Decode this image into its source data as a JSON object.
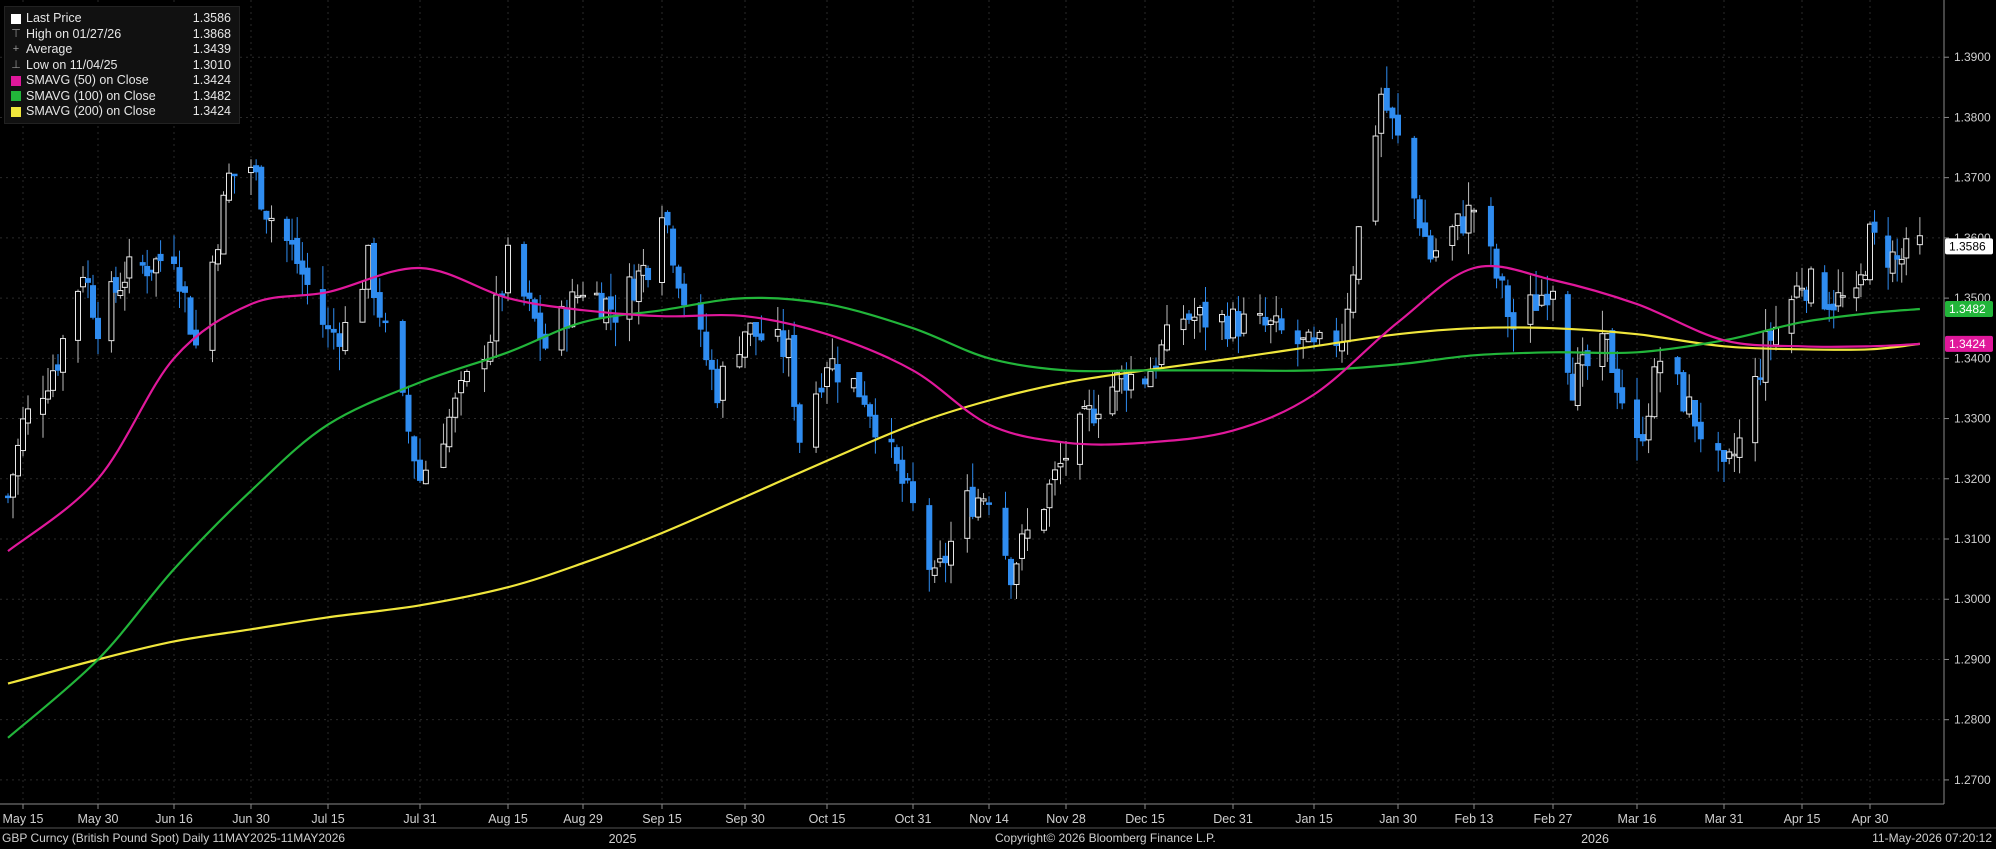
{
  "legend": {
    "last_price": {
      "label": "Last Price",
      "value": "1.3586"
    },
    "high": {
      "label": "High on 01/27/26",
      "value": "1.3868"
    },
    "average": {
      "label": "Average",
      "value": "1.3439"
    },
    "low": {
      "label": "Low on 11/04/25",
      "value": "1.3010"
    },
    "sma50": {
      "label": "SMAVG (50)  on Close",
      "value": "1.3424",
      "color": "#e0189b"
    },
    "sma100": {
      "label": "SMAVG (100)  on Close",
      "value": "1.3482",
      "color": "#22b53a"
    },
    "sma200": {
      "label": "SMAVG (200)  on Close",
      "value": "1.3424",
      "color": "#f0e63c"
    }
  },
  "footer": {
    "left": "GBP Curncy (British Pound Spot) Daily 11MAY2025-11MAY2026",
    "center": "Copyright© 2026 Bloomberg Finance L.P.",
    "right": "11-May-2026 07:20:12"
  },
  "colors": {
    "up_candle": "#ffffff",
    "down_candle": "#2f8cf0",
    "background": "#000000",
    "sma50": "#e0189b",
    "sma100": "#22b53a",
    "sma200": "#f0e63c"
  },
  "chart_data": {
    "type": "candlestick",
    "y_ticks": [
      "1.2700",
      "1.2800",
      "1.2900",
      "1.3000",
      "1.3100",
      "1.3200",
      "1.3300",
      "1.3400",
      "1.3500",
      "1.3600",
      "1.3700",
      "1.3800",
      "1.3900"
    ],
    "ylim": [
      1.266,
      1.3995
    ],
    "x_tick_labels": [
      "May 15",
      "May 30",
      "Jun 16",
      "Jun 30",
      "Jul 15",
      "Jul 31",
      "Aug 15",
      "Aug 29",
      "Sep 15",
      "Sep 30",
      "Oct 15",
      "Oct 31",
      "Nov 14",
      "Nov 28",
      "Dec 15",
      "Dec 31",
      "Jan 15",
      "Jan 30",
      "Feb 13",
      "Feb 27",
      "Mar 16",
      "Mar 31",
      "Apr 15",
      "Apr 30"
    ],
    "year_labels": [
      {
        "text": "2025",
        "after_tick": "Aug 29"
      },
      {
        "text": "2026",
        "after_tick": "Feb 27"
      }
    ],
    "last_labels": [
      {
        "series": "Last Price",
        "value": "1.3586"
      },
      {
        "series": "SMAVG (100)",
        "value": "1.3482"
      },
      {
        "series": "SMAVG (50)",
        "value": "1.3424"
      }
    ],
    "close_path": [
      [
        "May 12",
        1.317
      ],
      [
        "May 15",
        1.329
      ],
      [
        "May 22",
        1.34
      ],
      [
        "May 27",
        1.355
      ],
      [
        "May 30",
        1.346
      ],
      [
        "Jun 5",
        1.354
      ],
      [
        "Jun 12",
        1.356
      ],
      [
        "Jun 16",
        1.358
      ],
      [
        "Jun 20",
        1.342
      ],
      [
        "Jun 26",
        1.37
      ],
      [
        "Jun 30",
        1.372
      ],
      [
        "Jul 3",
        1.365
      ],
      [
        "Jul 8",
        1.358
      ],
      [
        "Jul 15",
        1.344
      ],
      [
        "Jul 18",
        1.345
      ],
      [
        "Jul 22",
        1.356
      ],
      [
        "Jul 31",
        1.32
      ],
      [
        "Aug 5",
        1.33
      ],
      [
        "Aug 12",
        1.344
      ],
      [
        "Aug 15",
        1.356
      ],
      [
        "Aug 22",
        1.342
      ],
      [
        "Aug 29",
        1.352
      ],
      [
        "Sep 5",
        1.348
      ],
      [
        "Sep 12",
        1.356
      ],
      [
        "Sep 15",
        1.366
      ],
      [
        "Sep 19",
        1.35
      ],
      [
        "Sep 25",
        1.335
      ],
      [
        "Sep 30",
        1.345
      ],
      [
        "Oct 8",
        1.341
      ],
      [
        "Oct 10",
        1.327
      ],
      [
        "Oct 15",
        1.34
      ],
      [
        "Oct 22",
        1.334
      ],
      [
        "Oct 31",
        1.315
      ],
      [
        "Nov 4",
        1.3025
      ],
      [
        "Nov 10",
        1.316
      ],
      [
        "Nov 14",
        1.318
      ],
      [
        "Nov 18",
        1.305
      ],
      [
        "Nov 28",
        1.324
      ],
      [
        "Dec 5",
        1.333
      ],
      [
        "Dec 10",
        1.337
      ],
      [
        "Dec 15",
        1.337
      ],
      [
        "Dec 22",
        1.347
      ],
      [
        "Dec 31",
        1.346
      ],
      [
        "Jan 7",
        1.345
      ],
      [
        "Jan 15",
        1.341
      ],
      [
        "Jan 20",
        1.344
      ],
      [
        "Jan 27",
        1.384
      ],
      [
        "Jan 30",
        1.376
      ],
      [
        "Feb 5",
        1.357
      ],
      [
        "Feb 13",
        1.365
      ],
      [
        "Feb 20",
        1.345
      ],
      [
        "Feb 27",
        1.353
      ],
      [
        "Mar 3",
        1.336
      ],
      [
        "Mar 10",
        1.342
      ],
      [
        "Mar 16",
        1.325
      ],
      [
        "Mar 20",
        1.34
      ],
      [
        "Mar 26",
        1.33
      ],
      [
        "Mar 31",
        1.32
      ],
      [
        "Apr 3",
        1.326
      ],
      [
        "Apr 8",
        1.342
      ],
      [
        "Apr 15",
        1.353
      ],
      [
        "Apr 21",
        1.35
      ],
      [
        "Apr 27",
        1.349
      ],
      [
        "Apr 30",
        1.36
      ],
      [
        "May 6",
        1.356
      ],
      [
        "May 11",
        1.3586
      ]
    ],
    "sma50": [
      [
        "May 12",
        1.308
      ],
      [
        "May 30",
        1.32
      ],
      [
        "Jun 16",
        1.34
      ],
      [
        "Jun 30",
        1.349
      ],
      [
        "Jul 15",
        1.351
      ],
      [
        "Jul 31",
        1.355
      ],
      [
        "Aug 15",
        1.35
      ],
      [
        "Aug 29",
        1.348
      ],
      [
        "Sep 15",
        1.347
      ],
      [
        "Sep 30",
        1.347
      ],
      [
        "Oct 15",
        1.344
      ],
      [
        "Oct 31",
        1.338
      ],
      [
        "Nov 14",
        1.329
      ],
      [
        "Nov 28",
        1.326
      ],
      [
        "Dec 15",
        1.326
      ],
      [
        "Dec 31",
        1.328
      ],
      [
        "Jan 15",
        1.334
      ],
      [
        "Jan 30",
        1.346
      ],
      [
        "Feb 13",
        1.355
      ],
      [
        "Feb 27",
        1.353
      ],
      [
        "Mar 16",
        1.349
      ],
      [
        "Mar 31",
        1.343
      ],
      [
        "Apr 15",
        1.342
      ],
      [
        "Apr 30",
        1.342
      ],
      [
        "May 11",
        1.3424
      ]
    ],
    "sma100": [
      [
        "May 12",
        1.277
      ],
      [
        "May 30",
        1.29
      ],
      [
        "Jun 16",
        1.305
      ],
      [
        "Jun 30",
        1.318
      ],
      [
        "Jul 15",
        1.329
      ],
      [
        "Jul 31",
        1.336
      ],
      [
        "Aug 15",
        1.341
      ],
      [
        "Aug 29",
        1.346
      ],
      [
        "Sep 15",
        1.348
      ],
      [
        "Sep 30",
        1.35
      ],
      [
        "Oct 15",
        1.349
      ],
      [
        "Oct 31",
        1.345
      ],
      [
        "Nov 14",
        1.34
      ],
      [
        "Nov 28",
        1.338
      ],
      [
        "Dec 15",
        1.338
      ],
      [
        "Dec 31",
        1.338
      ],
      [
        "Jan 15",
        1.338
      ],
      [
        "Jan 30",
        1.339
      ],
      [
        "Feb 13",
        1.3405
      ],
      [
        "Feb 27",
        1.341
      ],
      [
        "Mar 16",
        1.341
      ],
      [
        "Mar 31",
        1.343
      ],
      [
        "Apr 15",
        1.346
      ],
      [
        "Apr 30",
        1.3475
      ],
      [
        "May 11",
        1.3482
      ]
    ],
    "sma200": [
      [
        "May 12",
        1.286
      ],
      [
        "May 30",
        1.29
      ],
      [
        "Jun 16",
        1.293
      ],
      [
        "Jun 30",
        1.295
      ],
      [
        "Jul 15",
        1.297
      ],
      [
        "Jul 31",
        1.299
      ],
      [
        "Aug 15",
        1.302
      ],
      [
        "Aug 29",
        1.306
      ],
      [
        "Sep 15",
        1.311
      ],
      [
        "Sep 30",
        1.317
      ],
      [
        "Oct 15",
        1.323
      ],
      [
        "Oct 31",
        1.329
      ],
      [
        "Nov 14",
        1.333
      ],
      [
        "Nov 28",
        1.336
      ],
      [
        "Dec 15",
        1.338
      ],
      [
        "Dec 31",
        1.34
      ],
      [
        "Jan 15",
        1.342
      ],
      [
        "Jan 30",
        1.344
      ],
      [
        "Feb 13",
        1.345
      ],
      [
        "Feb 27",
        1.345
      ],
      [
        "Mar 16",
        1.344
      ],
      [
        "Mar 31",
        1.342
      ],
      [
        "Apr 15",
        1.3415
      ],
      [
        "Apr 30",
        1.3415
      ],
      [
        "May 11",
        1.3424
      ]
    ]
  }
}
